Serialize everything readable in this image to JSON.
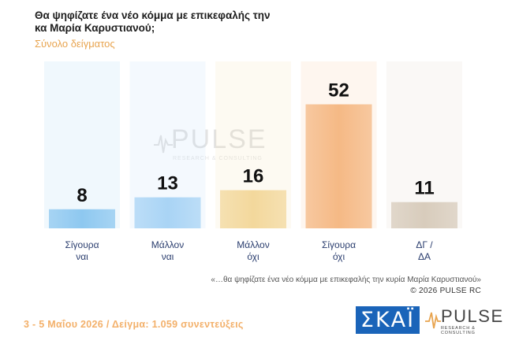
{
  "header": {
    "title": "Θα ψηφίζατε ένα νέο κόμμα με επικεφαλής την κα Μαρία Καρυστιανού;",
    "subtitle": "Σύνολο δείγματος"
  },
  "watermark": {
    "text": "PULSE",
    "sub": "RESEARCH & CONSULTING"
  },
  "chart_data": {
    "type": "bar",
    "categories": [
      "Σίγουρα ναι",
      "Μάλλον ναι",
      "Μάλλον όχι",
      "Σίγουρα όχι",
      "ΔΓ / ΔΑ"
    ],
    "category_lines": [
      [
        "Σίγουρα",
        "ναι"
      ],
      [
        "Μάλλον",
        "ναι"
      ],
      [
        "Μάλλον",
        "όχι"
      ],
      [
        "Σίγουρα",
        "όχι"
      ],
      [
        "ΔΓ /",
        "ΔΑ"
      ]
    ],
    "values": [
      8,
      13,
      16,
      52,
      11
    ],
    "colors": [
      "#8ec8f0",
      "#a9d4f5",
      "#f3d89c",
      "#f5b985",
      "#d8ccbc"
    ],
    "ylim": [
      0,
      70
    ],
    "grid": false,
    "legend": "none"
  },
  "notes": {
    "question_quote": "«…θα ψηφίζατε ένα νέο κόμμα με επικεφαλής την κυρία Μαρία Καρυστιανού»",
    "copyright": "©  2026  PULSE RC"
  },
  "footer": {
    "text": "3 - 5  Μαΐου 2026  /  Δείγμα:  1.059 συνεντεύξεις"
  },
  "logos": {
    "skai": "ΣΚΑΪ",
    "pulse": "PULSE",
    "pulse_sub": "RESEARCH & CONSULTING"
  },
  "colors": {
    "accent": "#e8a44f",
    "footer": "#f3b06a",
    "skai_blue": "#1a64b9"
  }
}
